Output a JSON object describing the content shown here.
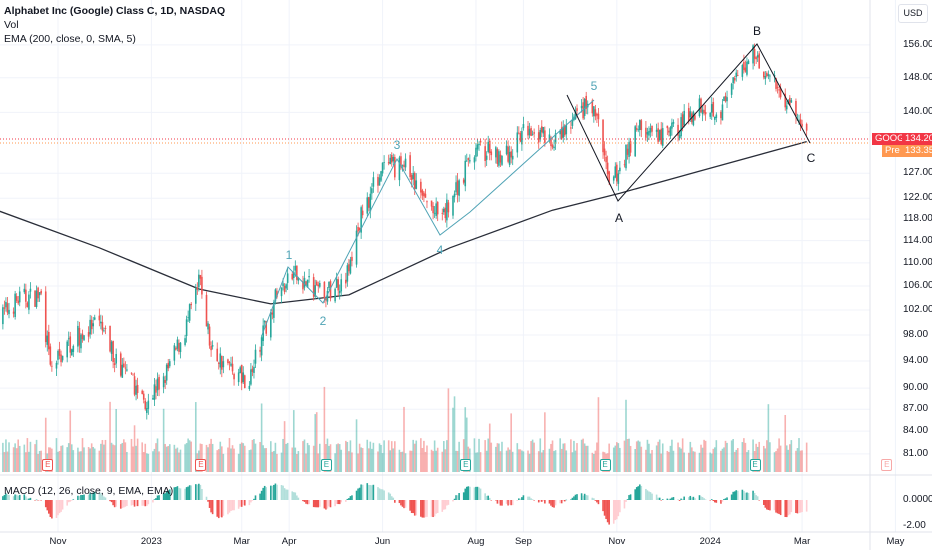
{
  "header": {
    "title": "Alphabet Inc (Google) Class C, 1D, NASDAQ",
    "volume_label": "Vol",
    "ema_label": "EMA (200, close, 0, SMA, 5)",
    "macd_label": "MACD (12, 26, close, 9, EMA, EMA)"
  },
  "price_axis": {
    "currency": "USD",
    "ticks": [
      "156.00",
      "148.00",
      "140.00",
      "127.00",
      "122.00",
      "118.00",
      "114.00",
      "110.00",
      "106.00",
      "102.00",
      "98.00",
      "94.00",
      "90.00",
      "87.00",
      "84.00",
      "81.00"
    ],
    "scale": "log",
    "last_price": {
      "symbol": "GOOG",
      "value": "134.20",
      "color": "#f23645"
    },
    "pre_market": {
      "label": "Pre",
      "value": "133.35",
      "color": "#ff9850"
    }
  },
  "macd_axis": {
    "ticks": [
      "0.0000",
      "-2.00"
    ]
  },
  "time_axis": {
    "ticks": [
      "Nov",
      "2023",
      "Mar",
      "Apr",
      "Jun",
      "Aug",
      "Sep",
      "Nov",
      "2024",
      "Mar",
      "May"
    ]
  },
  "earnings_markers": [
    {
      "label": "E",
      "date": "2022-10-25",
      "status": "miss"
    },
    {
      "label": "E",
      "date": "2023-02-02",
      "status": "miss"
    },
    {
      "label": "E",
      "date": "2023-04-25",
      "status": "beat"
    },
    {
      "label": "E",
      "date": "2023-07-25",
      "status": "beat"
    },
    {
      "label": "E",
      "date": "2023-10-24",
      "status": "beat"
    },
    {
      "label": "E",
      "date": "2024-01-30",
      "status": "beat"
    },
    {
      "label": "E",
      "date": "2024-04-25",
      "status": "upcoming"
    }
  ],
  "annotations": {
    "impulse_wave": {
      "labels": [
        "1",
        "2",
        "3",
        "4",
        "5"
      ],
      "color": "#4fa3b5"
    },
    "corrective_wave": {
      "labels": [
        "A",
        "B",
        "C"
      ],
      "color": "#131722"
    }
  },
  "colors": {
    "up": "#26a69a",
    "down": "#ef5350",
    "ema": "#2a2e39"
  },
  "chart_data": {
    "type": "candlestick",
    "symbol": "GOOG",
    "interval": "1D",
    "y_scale": "log",
    "ylim": [
      79,
      162
    ],
    "price_path": [
      [
        "2022-09-22",
        100.4
      ],
      [
        "2022-10-06",
        103.7
      ],
      [
        "2022-10-21",
        104.5
      ],
      [
        "2022-10-27",
        92.7
      ],
      [
        "2022-11-10",
        97.2
      ],
      [
        "2022-11-28",
        99.6
      ],
      [
        "2022-12-12",
        92.7
      ],
      [
        "2022-12-28",
        88.3
      ],
      [
        "2023-01-09",
        91.2
      ],
      [
        "2023-01-23",
        98.8
      ],
      [
        "2023-02-02",
        107.0
      ],
      [
        "2023-02-09",
        95.5
      ],
      [
        "2023-02-23",
        92.7
      ],
      [
        "2023-03-06",
        91.2
      ],
      [
        "2023-03-22",
        103.7
      ],
      [
        "2023-04-04",
        107.9
      ],
      [
        "2023-04-25",
        104.5
      ],
      [
        "2023-05-10",
        108.5
      ],
      [
        "2023-05-19",
        119.7
      ],
      [
        "2023-05-31",
        127.6
      ],
      [
        "2023-06-15",
        128.7
      ],
      [
        "2023-06-28",
        121.6
      ],
      [
        "2023-07-10",
        117.8
      ],
      [
        "2023-07-20",
        124.6
      ],
      [
        "2023-07-31",
        131.8
      ],
      [
        "2023-08-22",
        130.7
      ],
      [
        "2023-09-05",
        137.1
      ],
      [
        "2023-09-21",
        132.8
      ],
      [
        "2023-10-12",
        141.6
      ],
      [
        "2023-10-20",
        138.3
      ],
      [
        "2023-10-27",
        123.6
      ],
      [
        "2023-11-15",
        137.1
      ],
      [
        "2023-11-28",
        133.9
      ],
      [
        "2023-12-12",
        137.1
      ],
      [
        "2023-12-26",
        142.0
      ],
      [
        "2024-01-08",
        140.5
      ],
      [
        "2024-01-29",
        154.8
      ],
      [
        "2024-02-09",
        147.5
      ],
      [
        "2024-02-22",
        142.0
      ],
      [
        "2024-03-04",
        134.2
      ]
    ],
    "ema200": [
      [
        "2022-09-22",
        119.7
      ],
      [
        "2022-11-28",
        112.7
      ],
      [
        "2023-02-01",
        105.5
      ],
      [
        "2023-03-20",
        103.0
      ],
      [
        "2023-05-10",
        104.5
      ],
      [
        "2023-07-15",
        112.7
      ],
      [
        "2023-09-20",
        119.7
      ],
      [
        "2023-11-03",
        123.0
      ],
      [
        "2023-12-26",
        127.5
      ],
      [
        "2024-03-04",
        133.6
      ]
    ],
    "macd": {
      "fast": 12,
      "slow": 26,
      "signal": 9,
      "ylim": [
        -3,
        1.6
      ]
    }
  }
}
